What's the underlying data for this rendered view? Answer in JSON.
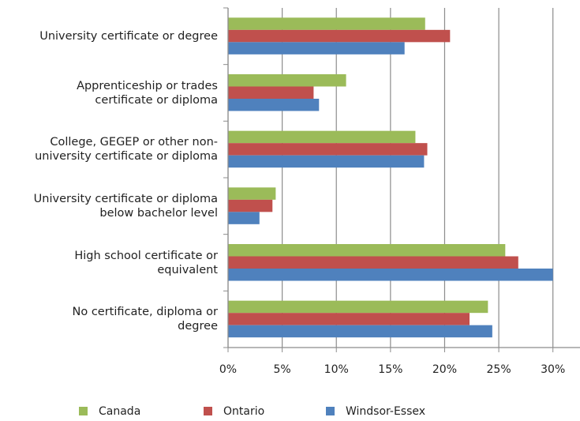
{
  "chart_data": {
    "type": "bar",
    "orientation": "horizontal",
    "categories": [
      "University certificate or degree",
      "Apprenticeship or trades\ncertificate or diploma",
      "College, GEGEP or other non-\nuniversity certificate or diploma",
      "University certificate or diploma\nbelow bachelor level",
      "High school certificate or\nequivalent",
      "No certificate, diploma or\ndegree"
    ],
    "series": [
      {
        "name": "Canada",
        "color": "#9bbb59",
        "values": [
          18.2,
          10.9,
          17.3,
          4.4,
          25.6,
          24.0
        ]
      },
      {
        "name": "Ontario",
        "color": "#c0504d",
        "values": [
          20.5,
          7.9,
          18.4,
          4.1,
          26.8,
          22.3
        ]
      },
      {
        "name": "Windsor-Essex",
        "color": "#4f81bd",
        "values": [
          16.3,
          8.4,
          18.1,
          2.9,
          30.0,
          24.4
        ]
      }
    ],
    "xlim": [
      0,
      32.5
    ],
    "xticks": [
      {
        "value": 0,
        "label": "0%"
      },
      {
        "value": 5,
        "label": "5%"
      },
      {
        "value": 10,
        "label": "10%"
      },
      {
        "value": 15,
        "label": "15%"
      },
      {
        "value": 20,
        "label": "20%"
      },
      {
        "value": 25,
        "label": "25%"
      },
      {
        "value": 30,
        "label": "30%"
      }
    ],
    "grid": true,
    "legend": "bottom"
  }
}
